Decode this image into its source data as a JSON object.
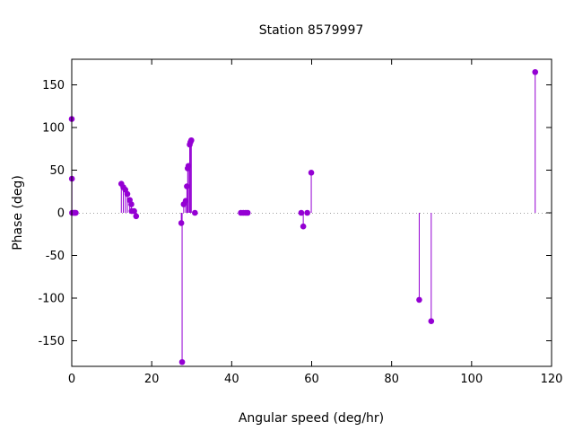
{
  "chart_data": {
    "type": "scatter",
    "style": "impulses-with-points",
    "title": "Station 8579997",
    "xlabel": "Angular speed (deg/hr)",
    "ylabel": "Phase (deg)",
    "xlim": [
      0,
      120
    ],
    "ylim": [
      -180,
      180
    ],
    "xticks": [
      0,
      20,
      40,
      60,
      80,
      100,
      120
    ],
    "yticks": [
      -150,
      -100,
      -50,
      0,
      50,
      100,
      150
    ],
    "xtick_labels": [
      "0",
      "20",
      "40",
      "60",
      "80",
      "100",
      "120"
    ],
    "ytick_labels": [
      "-150",
      "-100",
      "-50",
      "0",
      "50",
      "100",
      "150"
    ],
    "zero_line": true,
    "grid": false,
    "legend": "none",
    "color": "#9400d3",
    "series": [
      {
        "points": [
          {
            "x": 0.0,
            "y": 110
          },
          {
            "x": 0.04,
            "y": 40
          },
          {
            "x": 0.08,
            "y": 0
          },
          {
            "x": 0.5,
            "y": 0
          },
          {
            "x": 0.8,
            "y": 0
          },
          {
            "x": 1.0,
            "y": 0
          },
          {
            "x": 12.4,
            "y": 34
          },
          {
            "x": 12.9,
            "y": 30
          },
          {
            "x": 13.4,
            "y": 27
          },
          {
            "x": 13.9,
            "y": 22
          },
          {
            "x": 14.5,
            "y": 15
          },
          {
            "x": 14.9,
            "y": 10
          },
          {
            "x": 15.0,
            "y": 2
          },
          {
            "x": 15.6,
            "y": 2
          },
          {
            "x": 16.1,
            "y": -4
          },
          {
            "x": 27.4,
            "y": -12
          },
          {
            "x": 27.6,
            "y": -175
          },
          {
            "x": 28.0,
            "y": 10
          },
          {
            "x": 28.5,
            "y": 14
          },
          {
            "x": 28.8,
            "y": 31
          },
          {
            "x": 29.0,
            "y": 52
          },
          {
            "x": 29.2,
            "y": 55
          },
          {
            "x": 29.5,
            "y": 80
          },
          {
            "x": 29.7,
            "y": 83
          },
          {
            "x": 29.9,
            "y": 85
          },
          {
            "x": 30.8,
            "y": 0
          },
          {
            "x": 42.3,
            "y": 0
          },
          {
            "x": 42.9,
            "y": 0
          },
          {
            "x": 43.5,
            "y": 0
          },
          {
            "x": 44.0,
            "y": 0
          },
          {
            "x": 57.4,
            "y": 0
          },
          {
            "x": 57.9,
            "y": -16
          },
          {
            "x": 58.9,
            "y": 0
          },
          {
            "x": 59.9,
            "y": 47
          },
          {
            "x": 86.9,
            "y": -102
          },
          {
            "x": 89.9,
            "y": -127
          },
          {
            "x": 115.9,
            "y": 165
          }
        ]
      }
    ]
  }
}
